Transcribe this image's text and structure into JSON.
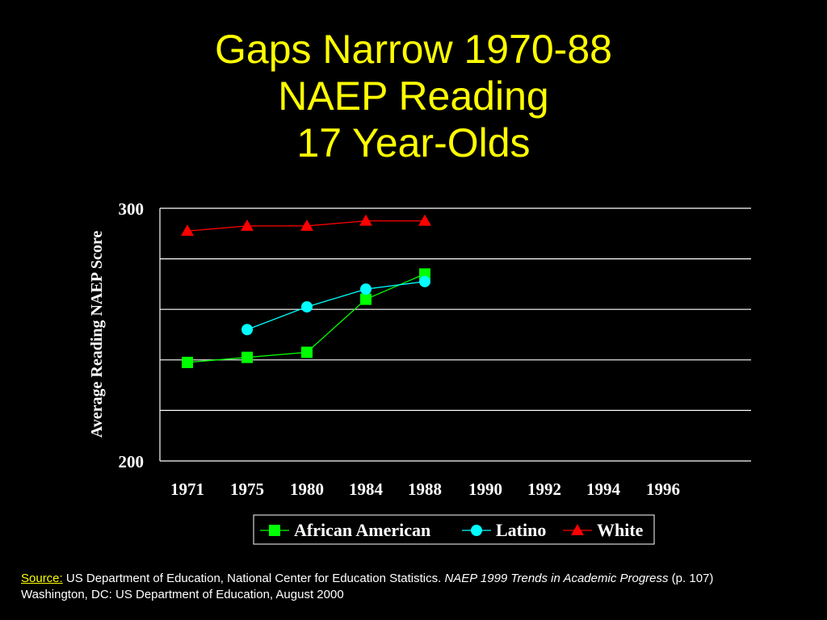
{
  "title": {
    "line1": "Gaps Narrow 1970-88",
    "line2": "NAEP Reading",
    "line3": "17 Year-Olds"
  },
  "chart_data": {
    "type": "line",
    "title": "Gaps Narrow 1970-88 NAEP Reading 17 Year-Olds",
    "ylabel": "Average Reading NAEP Score",
    "xlabel": "",
    "ylim": [
      200,
      300
    ],
    "y_tick_labels": [
      "300",
      "200"
    ],
    "y_gridlines": [
      200,
      220,
      240,
      260,
      280,
      300
    ],
    "grid": true,
    "categories": [
      "1971",
      "1975",
      "1980",
      "1984",
      "1988",
      "1990",
      "1992",
      "1994",
      "1996"
    ],
    "legend_position": "bottom",
    "series": [
      {
        "name": "African American",
        "marker": "square",
        "color": "#00ff00",
        "values": [
          239,
          241,
          243,
          264,
          274,
          null,
          null,
          null,
          null
        ]
      },
      {
        "name": "Latino",
        "marker": "circle",
        "color": "#00ffff",
        "values": [
          null,
          252,
          261,
          268,
          271,
          null,
          null,
          null,
          null
        ]
      },
      {
        "name": "White",
        "marker": "triangle",
        "color": "#ff0000",
        "values": [
          291,
          293,
          293,
          295,
          295,
          null,
          null,
          null,
          null
        ]
      }
    ]
  },
  "source": {
    "label": "Source:",
    "text1": " US Department of Education, National Center for Education Statistics. ",
    "publication": "NAEP 1999 Trends in Academic Progress",
    "text2": " (p. 107)",
    "line2": "Washington, DC: US  Department of Education, August 2000"
  },
  "colors": {
    "background": "#000000",
    "title": "#ffff00",
    "axis_text": "#ffffff"
  }
}
